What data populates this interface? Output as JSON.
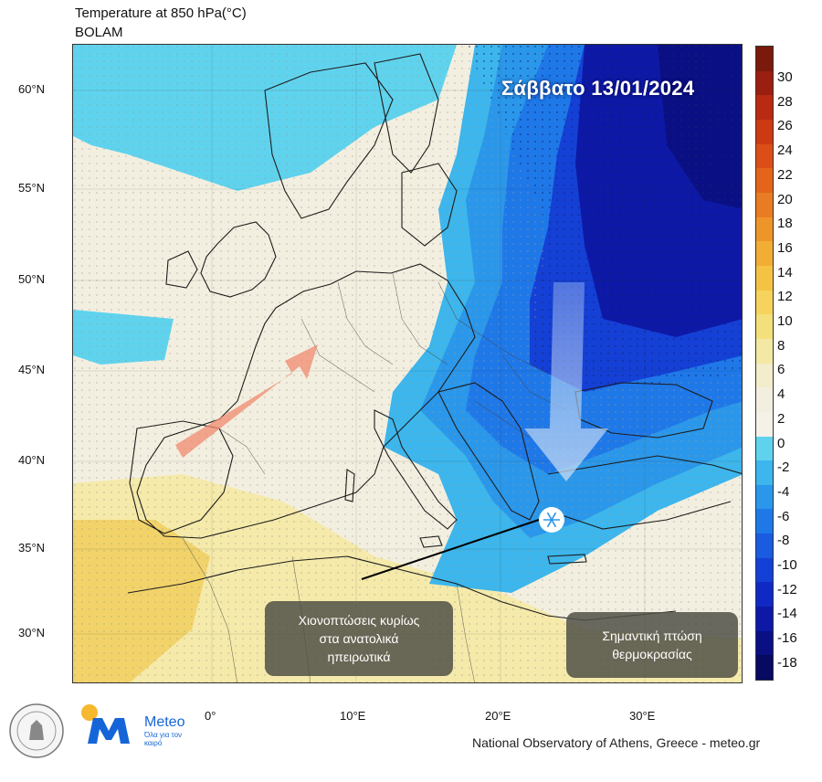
{
  "header": {
    "line1": "Temperature at 850 hPa(°C)",
    "line2": "BOLAM"
  },
  "date_label": "Σάββατο 13/01/2024",
  "callouts": {
    "snow": "Χιονοπτώσεις κυρίως στα ανατολικά ηπειρωτικά",
    "snow_lines": [
      "Χιονοπτώσεις κυρίως",
      "στα ανατολικά",
      "ηπειρωτικά"
    ],
    "temp": "Σημαντική πτώση θερμοκρασίας",
    "temp_lines": [
      "Σημαντική πτώση",
      "θερμοκρασίας"
    ]
  },
  "axes": {
    "lat_ticks": [
      "60°N",
      "55°N",
      "50°N",
      "45°N",
      "40°N",
      "35°N",
      "30°N"
    ],
    "lon_ticks": [
      "0°",
      "10°E",
      "20°E",
      "30°E"
    ]
  },
  "colorbar": {
    "labels": [
      "30",
      "28",
      "26",
      "24",
      "22",
      "20",
      "18",
      "16",
      "14",
      "12",
      "10",
      "8",
      "6",
      "4",
      "2",
      "0",
      "-2",
      "-4",
      "-6",
      "-8",
      "-10",
      "-12",
      "-14",
      "-16",
      "-18"
    ],
    "colors": [
      "#7a1a0c",
      "#9a1f10",
      "#b82a12",
      "#cc3a14",
      "#dc4e18",
      "#e4641c",
      "#e97c22",
      "#ee952a",
      "#f2ad34",
      "#f5c343",
      "#f6d35c",
      "#f4e07a",
      "#f3e8a4",
      "#f2edca",
      "#f3efe0",
      "#f4f1e8",
      "#5fd3ee",
      "#3cb6ec",
      "#2a97ea",
      "#1f78e8",
      "#1a5be0",
      "#1440d6",
      "#1029c4",
      "#0d19a6",
      "#0a0f84",
      "#070a60"
    ]
  },
  "logos": {
    "brand": "Meteo",
    "tagline": "Όλα για τον καιρό"
  },
  "credit": "National Observatory of Athens, Greece - meteo.gr",
  "colors": {
    "warm_arrow": "#f08a70",
    "cold_arrow": "#c8dcf4",
    "callout_bg": "#505046",
    "accent": "#1565d8"
  }
}
